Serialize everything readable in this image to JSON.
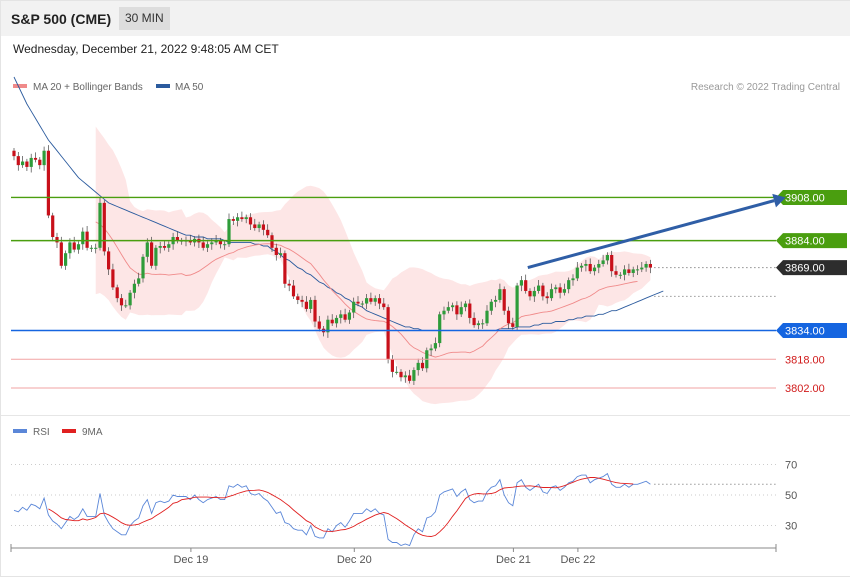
{
  "header": {
    "instrument": "S&P 500 (CME)",
    "timeframe": "30 MIN",
    "datetime": "Wednesday, December 21, 2022 9:48:05 AM CET"
  },
  "colors": {
    "candle_up": "#2e9c3a",
    "candle_down": "#c8101a",
    "ma20": "#f08a8a",
    "ma50": "#2b5b9e",
    "band_fill": "#fde2e2",
    "resistance": "#4a9e0f",
    "pivot": "#2d2d2d",
    "support1": "#1565e0",
    "support_weak": "#f2a3a3",
    "support_weak_text": "#d11b1b",
    "rsi": "#5b87d8",
    "rsi_ma": "#e02020",
    "arrow": "#2f5ea6"
  },
  "chart_data": [
    {
      "type": "candlestick",
      "legend": [
        {
          "name": "MA 20 + Bollinger Bands",
          "color": "#f08a8a"
        },
        {
          "name": "MA 50",
          "color": "#2b5b9e"
        }
      ],
      "legend_position": "top-left",
      "watermark": "Research © 2022 Trading Central",
      "x_ticks": [
        {
          "label": "Dec 19",
          "index": 23
        },
        {
          "label": "Dec 20",
          "index": 61
        },
        {
          "label": "Dec 21",
          "index": 98
        },
        {
          "label": "Dec 22",
          "index": 113
        }
      ],
      "ylim": [
        3792,
        3960
      ],
      "levels": [
        {
          "value": 3908.0,
          "label": "3908.00",
          "kind": "resistance"
        },
        {
          "value": 3884.0,
          "label": "3884.00",
          "kind": "resistance"
        },
        {
          "value": 3869.0,
          "label": "3869.00",
          "kind": "pivot"
        },
        {
          "value": 3834.0,
          "label": "3834.00",
          "kind": "support"
        },
        {
          "value": 3818.0,
          "label": "3818.00",
          "kind": "support_weak"
        },
        {
          "value": 3802.0,
          "label": "3802.00",
          "kind": "support_weak"
        }
      ],
      "projection": {
        "from_index": 116,
        "from_value": 3869,
        "to_index": 129,
        "to_value": 3908
      },
      "close": [
        3931,
        3926,
        3928,
        3925,
        3930,
        3929,
        3926,
        3934,
        3898,
        3886,
        3883,
        3870,
        3877,
        3883,
        3879,
        3882,
        3889,
        3880,
        3880,
        3880,
        3905,
        3878,
        3868,
        3858,
        3852,
        3848,
        3848,
        3855,
        3860,
        3863,
        3875,
        3883,
        3870,
        3880,
        3881,
        3880,
        3882,
        3886,
        3884,
        3884,
        3884,
        3883,
        3885,
        3883,
        3880,
        3882,
        3883,
        3884,
        3882,
        3882,
        3896,
        3895,
        3897,
        3896,
        3897,
        3893,
        3891,
        3893,
        3890,
        3887,
        3880,
        3876,
        3877,
        3860,
        3859,
        3853,
        3851,
        3850,
        3846,
        3851,
        3839,
        3835,
        3833,
        3840,
        3838,
        3841,
        3843,
        3840,
        3844,
        3850,
        3849,
        3849,
        3852,
        3850,
        3852,
        3849,
        3847,
        3818,
        3811,
        3811,
        3808,
        3809,
        3806,
        3812,
        3816,
        3813,
        3823,
        3824,
        3827,
        3843,
        3845,
        3847,
        3848,
        3843,
        3847,
        3849,
        3841,
        3837,
        3838,
        3838,
        3845,
        3850,
        3851,
        3857,
        3845,
        3838,
        3836,
        3859,
        3862,
        3856,
        3853,
        3856,
        3859,
        3853,
        3852,
        3857,
        3858,
        3855,
        3857,
        3862,
        3863,
        3869,
        3870,
        3871,
        3867,
        3869,
        3871,
        3873,
        3876,
        3867,
        3865,
        3865,
        3868,
        3866,
        3868,
        3868,
        3869,
        3871,
        3869
      ],
      "ma20": [
        null,
        null,
        null,
        null,
        null,
        null,
        null,
        null,
        null,
        null,
        null,
        null,
        null,
        null,
        null,
        null,
        null,
        null,
        null,
        3894.4,
        3893.1,
        3890.7,
        3887.7,
        3884.2,
        3880.3,
        3876.3,
        3872.4,
        3868.9,
        3867.0,
        3865.3,
        3865.2,
        3865.9,
        3865.3,
        3865.2,
        3865.3,
        3865.2,
        3864.8,
        3865.1,
        3865.4,
        3865.6,
        3864.6,
        3864.9,
        3865.8,
        3867.0,
        3868.6,
        3870.3,
        3872.1,
        3873.6,
        3874.7,
        3875.7,
        3876.8,
        3877.4,
        3878.8,
        3879.6,
        3880.4,
        3881.0,
        3881.5,
        3881.9,
        3882.2,
        3882.3,
        3882.1,
        3881.8,
        3881.4,
        3880.2,
        3879.2,
        3877.8,
        3876.2,
        3874.5,
        3872.7,
        3871.2,
        3868.3,
        3865.3,
        3862.1,
        3859.3,
        3856.3,
        3853.8,
        3851.4,
        3848.8,
        3846.5,
        3844.6,
        3843.1,
        3841.7,
        3840.4,
        3839.9,
        3839.5,
        3839.3,
        3839.1,
        3837.9,
        3836.2,
        3834.2,
        3832.0,
        3829.2,
        3826.3,
        3824.4,
        3823.2,
        3821.8,
        3820.8,
        3820.0,
        3819.2,
        3819.8,
        3820.6,
        3821.5,
        3821.9,
        3821.9,
        3822.0,
        3822.0,
        3821.6,
        3822.6,
        3824.0,
        3825.3,
        3827.9,
        3830.0,
        3832.2,
        3834.9,
        3836.4,
        3837.6,
        3838.3,
        3839.9,
        3841.7,
        3842.3,
        3842.7,
        3843.2,
        3843.7,
        3844.2,
        3844.4,
        3844.8,
        3845.6,
        3846.5,
        3847.4,
        3848.3,
        3849.2,
        3850.3,
        3851.4,
        3852.1,
        3853.2,
        3854.7,
        3856.5,
        3857.3,
        3858.2,
        3858.6,
        3858.9,
        3859.4,
        3860.0,
        3860.5,
        3861.0,
        3861.3
      ],
      "ma50": [
        3975,
        3970,
        3965,
        3960,
        3956,
        3952,
        3948,
        3944,
        3940,
        3937,
        3934,
        3931,
        3928,
        3925,
        3922,
        3919,
        3917,
        3915,
        3913,
        3911,
        3909,
        3907,
        3905,
        3904,
        3903,
        3902,
        3901,
        3900,
        3899,
        3898,
        3897,
        3896,
        3895,
        3894,
        3893,
        3892,
        3891,
        3890,
        3889,
        3888,
        3887,
        3887,
        3886,
        3886,
        3886,
        3885,
        3885,
        3885,
        3885,
        3884,
        3883,
        3883,
        3883,
        3883,
        3883,
        3883,
        3882,
        3882,
        3881,
        3881,
        3879,
        3878,
        3876,
        3874,
        3873,
        3871,
        3869,
        3868,
        3866,
        3865,
        3863,
        3861,
        3860,
        3858,
        3857,
        3855,
        3854,
        3852,
        3851,
        3849,
        3848,
        3847,
        3845,
        3844,
        3843,
        3842,
        3841,
        3840,
        3839,
        3838,
        3837,
        3836,
        3836,
        3835,
        3835,
        3834,
        3834,
        3834,
        3834,
        3834,
        3834,
        3834,
        3834,
        3834,
        3834,
        3834,
        3834,
        3834,
        3834,
        3834,
        3834,
        3834,
        3834,
        3835,
        3835,
        3835,
        3835,
        3836,
        3836,
        3836,
        3836,
        3837,
        3837,
        3838,
        3838,
        3838,
        3839,
        3839,
        3839,
        3840,
        3840,
        3841,
        3841,
        3842,
        3842,
        3842,
        3843,
        3843,
        3844,
        3845,
        3845,
        3846,
        3847,
        3848,
        3849,
        3850,
        3851,
        3852,
        3853,
        3854,
        3855,
        3856
      ]
    },
    {
      "type": "line",
      "legend": [
        {
          "name": "RSI",
          "color": "#5b87d8"
        },
        {
          "name": "9MA",
          "color": "#e02020"
        }
      ],
      "legend_position": "top-left",
      "y_ticks": [
        70,
        50,
        30
      ],
      "ylim": [
        18,
        82
      ],
      "rsi": [
        40,
        39,
        42,
        40,
        44,
        43,
        41,
        48,
        37,
        33,
        31,
        28,
        32,
        36,
        34,
        36,
        41,
        36,
        36,
        36,
        51,
        37,
        32,
        28,
        26,
        24,
        24,
        30,
        33,
        35,
        43,
        47,
        38,
        45,
        46,
        45,
        46,
        50,
        49,
        49,
        49,
        47,
        50,
        47,
        45,
        47,
        48,
        49,
        47,
        47,
        56,
        55,
        57,
        55,
        56,
        51,
        50,
        51,
        48,
        46,
        42,
        38,
        39,
        32,
        31,
        28,
        27,
        27,
        24,
        30,
        23,
        22,
        22,
        28,
        26,
        30,
        32,
        29,
        33,
        38,
        38,
        38,
        41,
        39,
        41,
        38,
        37,
        21,
        19,
        19,
        17,
        18,
        17,
        24,
        28,
        26,
        35,
        36,
        39,
        50,
        52,
        53,
        54,
        49,
        52,
        54,
        47,
        45,
        46,
        46,
        52,
        55,
        56,
        60,
        50,
        45,
        43,
        58,
        60,
        55,
        53,
        55,
        57,
        52,
        51,
        55,
        56,
        53,
        55,
        58,
        59,
        62,
        63,
        63,
        58,
        60,
        61,
        62,
        64,
        57,
        55,
        55,
        57,
        55,
        57,
        57,
        58,
        59,
        57
      ],
      "rsi_ma": [
        null,
        null,
        null,
        null,
        null,
        null,
        null,
        null,
        40.9,
        39.3,
        37.3,
        35.1,
        34.0,
        33.7,
        33.2,
        33.2,
        34.4,
        33.7,
        34.4,
        35.3,
        37.7,
        38.2,
        37.1,
        35.5,
        33.9,
        31.9,
        30.6,
        30.2,
        30.5,
        30.9,
        32.3,
        33.5,
        34.5,
        36.4,
        38.2,
        40.0,
        42.0,
        44.6,
        45.3,
        46.9,
        47.4,
        47.8,
        48.5,
        48.6,
        48.6,
        48.6,
        48.4,
        48.4,
        48.2,
        48.2,
        49.1,
        49.9,
        51.0,
        51.8,
        52.7,
        53.0,
        53.1,
        53.3,
        52.7,
        51.7,
        50.2,
        48.6,
        47.0,
        44.9,
        42.8,
        40.2,
        37.9,
        35.6,
        33.2,
        31.8,
        29.2,
        27.7,
        26.4,
        26.3,
        26.2,
        26.6,
        27.2,
        27.5,
        28.3,
        29.5,
        31.2,
        32.6,
        34.2,
        35.5,
        36.9,
        37.8,
        38.6,
        37.9,
        36.2,
        34.6,
        32.6,
        30.5,
        28.7,
        26.9,
        25.0,
        23.7,
        23.1,
        22.9,
        23.6,
        26.0,
        28.7,
        32.1,
        36.1,
        39.6,
        43.7,
        47.7,
        49.7,
        50.6,
        51.0,
        50.7,
        50.7,
        51.0,
        51.7,
        53.4,
        54.6,
        54.8,
        55.1,
        55.5,
        55.8,
        55.8,
        56.0,
        55.7,
        55.3,
        54.9,
        54.9,
        54.8,
        54.7,
        55.3,
        56.1,
        57.2,
        58.3,
        59.5,
        60.3,
        60.9,
        61.4,
        61.4,
        61.0,
        60.3,
        59.6,
        58.8,
        58.1,
        57.7,
        57.6,
        57.4,
        57.2
      ]
    }
  ]
}
